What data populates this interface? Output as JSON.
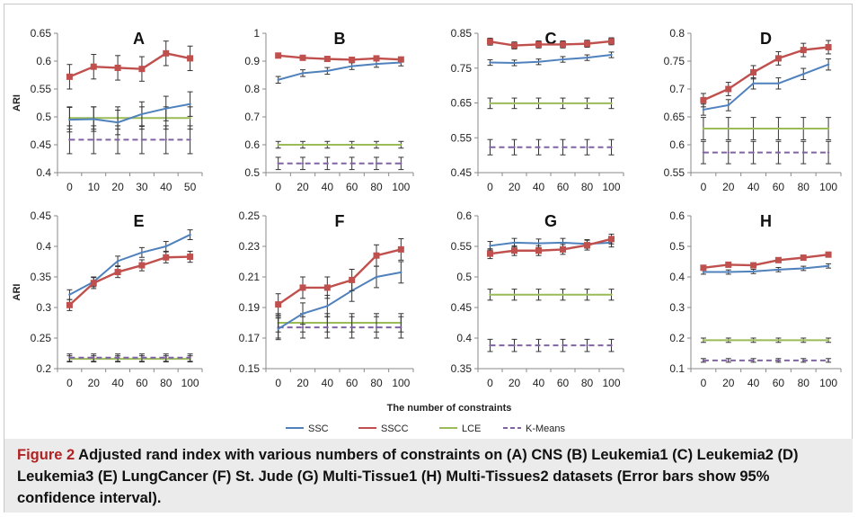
{
  "figure": {
    "caption_label": "Figure 2",
    "caption_text": "Adjusted rand index with various numbers of constraints on (A) CNS (B) Leukemia1 (C) Leukemia2 (D) Leukemia3 (E) LungCancer (F) St. Jude (G) Multi-Tissue1 (H) Multi-Tissues2 datasets (Error bars show 95% confidence interval).",
    "shared_xlabel": "The number of constraints",
    "shared_ylabel": "ARI",
    "legend": [
      {
        "name": "SSC",
        "color": "#4f81bd",
        "dash": false
      },
      {
        "name": "SSCC",
        "color": "#c0504d",
        "dash": false
      },
      {
        "name": "LCE",
        "color": "#9bbb59",
        "dash": false
      },
      {
        "name": "K-Means",
        "color": "#8064a2",
        "dash": true
      }
    ]
  },
  "chart_data": [
    {
      "type": "line",
      "title": "A",
      "ylabel": "ARI",
      "x": [
        0,
        10,
        20,
        30,
        40,
        50
      ],
      "ylim": [
        0.4,
        0.65
      ],
      "yticks": [
        "0.4",
        "0.45",
        "0.5",
        "0.55",
        "0.6",
        "0.65"
      ],
      "series": [
        {
          "name": "SSC",
          "values": [
            0.495,
            0.496,
            0.49,
            0.505,
            0.515,
            0.523
          ],
          "err": 0.022
        },
        {
          "name": "SSCC",
          "values": [
            0.572,
            0.59,
            0.588,
            0.586,
            0.614,
            0.605
          ],
          "err": 0.022
        },
        {
          "name": "LCE",
          "values": [
            0.498,
            0.498,
            0.498,
            0.498,
            0.498,
            0.498
          ],
          "err": 0.02
        },
        {
          "name": "K-Means",
          "values": [
            0.459,
            0.459,
            0.459,
            0.459,
            0.459,
            0.459
          ],
          "err": 0.025
        }
      ]
    },
    {
      "type": "line",
      "title": "B",
      "x": [
        0,
        20,
        40,
        60,
        80,
        100
      ],
      "ylim": [
        0.5,
        1.0
      ],
      "yticks": [
        "0.5",
        "0.6",
        "0.7",
        "0.8",
        "0.9",
        "1"
      ],
      "series": [
        {
          "name": "SSC",
          "values": [
            0.833,
            0.857,
            0.865,
            0.882,
            0.89,
            0.895
          ],
          "err": 0.012
        },
        {
          "name": "SSCC",
          "values": [
            0.92,
            0.912,
            0.908,
            0.905,
            0.91,
            0.906
          ],
          "err": 0.008
        },
        {
          "name": "LCE",
          "values": [
            0.6,
            0.6,
            0.6,
            0.6,
            0.6,
            0.6
          ],
          "err": 0.012
        },
        {
          "name": "K-Means",
          "values": [
            0.533,
            0.533,
            0.533,
            0.533,
            0.533,
            0.533
          ],
          "err": 0.022
        }
      ]
    },
    {
      "type": "line",
      "title": "C",
      "x": [
        0,
        20,
        40,
        60,
        80,
        100
      ],
      "ylim": [
        0.45,
        0.85
      ],
      "yticks": [
        "0.45",
        "0.55",
        "0.65",
        "0.75",
        "0.85"
      ],
      "series": [
        {
          "name": "SSC",
          "values": [
            0.766,
            0.765,
            0.768,
            0.775,
            0.78,
            0.788
          ],
          "err": 0.008
        },
        {
          "name": "SSCC",
          "values": [
            0.826,
            0.815,
            0.818,
            0.818,
            0.82,
            0.827
          ],
          "err": 0.01
        },
        {
          "name": "LCE",
          "values": [
            0.649,
            0.649,
            0.649,
            0.649,
            0.649,
            0.649
          ],
          "err": 0.015
        },
        {
          "name": "K-Means",
          "values": [
            0.523,
            0.523,
            0.523,
            0.523,
            0.523,
            0.523
          ],
          "err": 0.022
        }
      ]
    },
    {
      "type": "line",
      "title": "D",
      "x": [
        0,
        20,
        40,
        60,
        80,
        100
      ],
      "ylim": [
        0.55,
        0.8
      ],
      "yticks": [
        "0.55",
        "0.6",
        "0.65",
        "0.7",
        "0.75",
        "0.8"
      ],
      "series": [
        {
          "name": "SSC",
          "values": [
            0.663,
            0.671,
            0.71,
            0.71,
            0.727,
            0.744
          ],
          "err": 0.01
        },
        {
          "name": "SSCC",
          "values": [
            0.68,
            0.7,
            0.73,
            0.755,
            0.77,
            0.775
          ],
          "err": 0.012
        },
        {
          "name": "LCE",
          "values": [
            0.629,
            0.629,
            0.629,
            0.629,
            0.629,
            0.629
          ],
          "err": 0.02
        },
        {
          "name": "K-Means",
          "values": [
            0.586,
            0.586,
            0.586,
            0.586,
            0.586,
            0.586
          ],
          "err": 0.02
        }
      ]
    },
    {
      "type": "line",
      "title": "E",
      "ylabel": "ARI",
      "x": [
        0,
        20,
        40,
        60,
        80,
        100
      ],
      "ylim": [
        0.2,
        0.45
      ],
      "yticks": [
        "0.2",
        "0.25",
        "0.3",
        "0.35",
        "0.4",
        "0.45"
      ],
      "series": [
        {
          "name": "SSC",
          "values": [
            0.321,
            0.342,
            0.376,
            0.39,
            0.4,
            0.419
          ],
          "err": 0.008
        },
        {
          "name": "SSCC",
          "values": [
            0.304,
            0.34,
            0.358,
            0.369,
            0.382,
            0.383
          ],
          "err": 0.009
        },
        {
          "name": "LCE",
          "values": [
            0.216,
            0.216,
            0.216,
            0.216,
            0.216,
            0.216
          ],
          "err": 0.005
        },
        {
          "name": "K-Means",
          "values": [
            0.218,
            0.218,
            0.218,
            0.218,
            0.218,
            0.218
          ],
          "err": 0.006
        }
      ]
    },
    {
      "type": "line",
      "title": "F",
      "x": [
        0,
        20,
        40,
        60,
        80,
        100
      ],
      "ylim": [
        0.15,
        0.25
      ],
      "yticks": [
        "0.15",
        "0.17",
        "0.19",
        "0.21",
        "0.23",
        "0.25"
      ],
      "series": [
        {
          "name": "SSC",
          "values": [
            0.176,
            0.186,
            0.191,
            0.201,
            0.21,
            0.213
          ],
          "err": 0.007
        },
        {
          "name": "SSCC",
          "values": [
            0.192,
            0.203,
            0.203,
            0.208,
            0.224,
            0.228
          ],
          "err": 0.007
        },
        {
          "name": "LCE",
          "values": [
            0.18,
            0.18,
            0.18,
            0.18,
            0.18,
            0.18
          ],
          "err": 0.006
        },
        {
          "name": "K-Means",
          "values": [
            0.177,
            0.177,
            0.177,
            0.177,
            0.177,
            0.177
          ],
          "err": 0.007
        }
      ]
    },
    {
      "type": "line",
      "title": "G",
      "x": [
        0,
        20,
        40,
        60,
        80,
        100
      ],
      "ylim": [
        0.35,
        0.6
      ],
      "yticks": [
        "0.35",
        "0.4",
        "0.45",
        "0.5",
        "0.55",
        "0.6"
      ],
      "series": [
        {
          "name": "SSC",
          "values": [
            0.551,
            0.556,
            0.555,
            0.556,
            0.554,
            0.556
          ],
          "err": 0.007
        },
        {
          "name": "SSCC",
          "values": [
            0.538,
            0.543,
            0.543,
            0.545,
            0.552,
            0.562
          ],
          "err": 0.008
        },
        {
          "name": "LCE",
          "values": [
            0.471,
            0.471,
            0.471,
            0.471,
            0.471,
            0.471
          ],
          "err": 0.009
        },
        {
          "name": "K-Means",
          "values": [
            0.388,
            0.388,
            0.388,
            0.388,
            0.388,
            0.388
          ],
          "err": 0.01
        }
      ]
    },
    {
      "type": "line",
      "title": "H",
      "x": [
        0,
        20,
        40,
        60,
        80,
        100
      ],
      "ylim": [
        0.1,
        0.6
      ],
      "yticks": [
        "0.1",
        "0.2",
        "0.3",
        "0.4",
        "0.5",
        "0.6"
      ],
      "series": [
        {
          "name": "SSC",
          "values": [
            0.416,
            0.416,
            0.418,
            0.424,
            0.428,
            0.436
          ],
          "err": 0.007
        },
        {
          "name": "SSCC",
          "values": [
            0.43,
            0.44,
            0.438,
            0.455,
            0.463,
            0.473
          ],
          "err": 0.008
        },
        {
          "name": "LCE",
          "values": [
            0.193,
            0.193,
            0.193,
            0.193,
            0.193,
            0.193
          ],
          "err": 0.007
        },
        {
          "name": "K-Means",
          "values": [
            0.127,
            0.127,
            0.127,
            0.127,
            0.127,
            0.127
          ],
          "err": 0.006
        }
      ]
    }
  ]
}
